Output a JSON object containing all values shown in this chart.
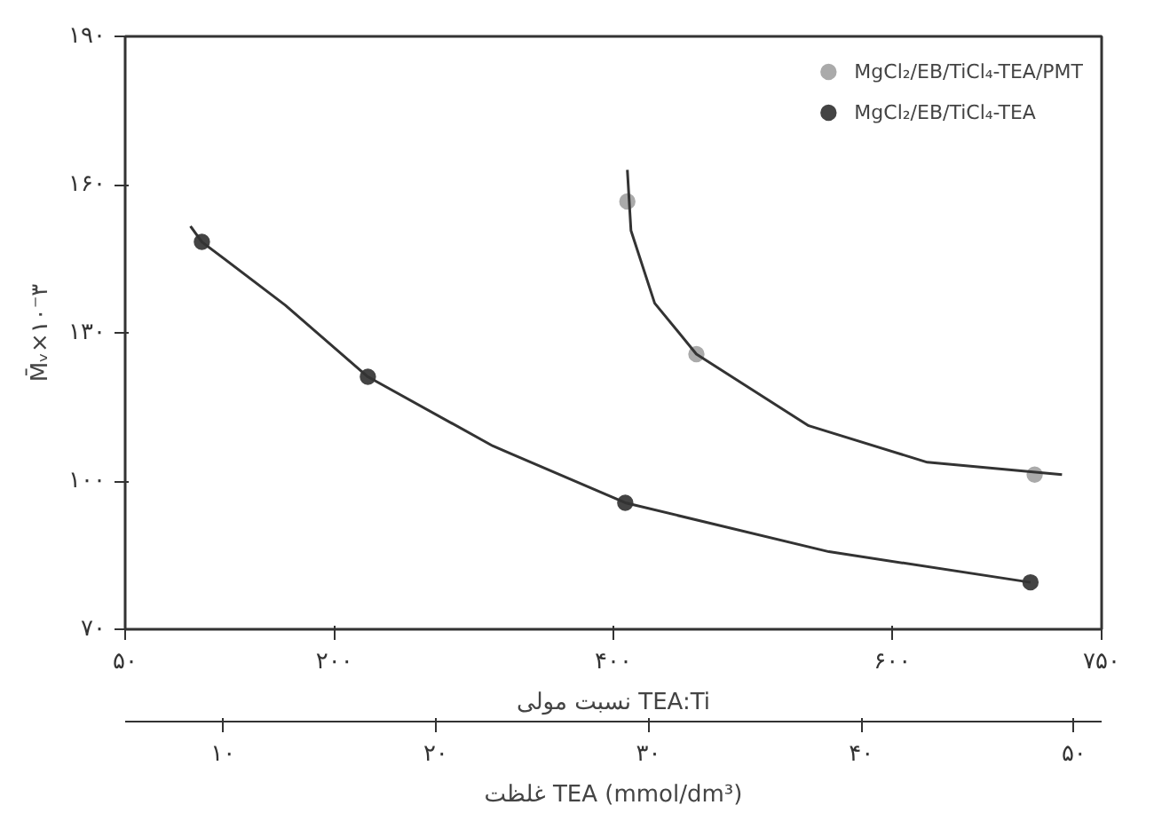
{
  "chart_data": {
    "type": "scatter",
    "xlabel": "نسبت مولی TEA:Ti",
    "ylabel": "M̄ᵥ×۱۰⁻۳",
    "x2label": "غلظت TEA (mmol/dm³)",
    "xlim": [
      50,
      750
    ],
    "xticks": [
      {
        "value": 50,
        "label": "۵۰"
      },
      {
        "value": 200,
        "label": "۲۰۰"
      },
      {
        "value": 400,
        "label": "۴۰۰"
      },
      {
        "value": 600,
        "label": "۶۰۰"
      },
      {
        "value": 750,
        "label": "۷۵۰"
      }
    ],
    "x2lim": [
      5.4,
      51.3
    ],
    "x2ticks": [
      {
        "value": 10,
        "label": "۱۰"
      },
      {
        "value": 20,
        "label": "۲۰"
      },
      {
        "value": 30,
        "label": "۳۰"
      },
      {
        "value": 40,
        "label": "۴۰"
      },
      {
        "value": 50,
        "label": "۵۰"
      }
    ],
    "ylim": [
      70,
      190
    ],
    "yticks": [
      {
        "value": 70,
        "label": "۷۰"
      },
      {
        "value": 100,
        "label": "۱۰۰"
      },
      {
        "value": 130,
        "label": "۱۳۰"
      },
      {
        "value": 160,
        "label": "۱۶۰"
      },
      {
        "value": 190,
        "label": "۱۹۰"
      }
    ],
    "grid": false,
    "legend": "top right",
    "marker": "circle",
    "series": [
      {
        "name": "MgCl₂/EB/TiCl₄-TEA/PMT",
        "color": "#aaaaaa",
        "x": [
          410,
          459.5,
          702
        ],
        "values": [
          156.6,
          125.7,
          101.3
        ]
      },
      {
        "name": "MgCl₂/EB/TiCl₄-TEA",
        "color": "#444444",
        "x": [
          105,
          224,
          408.5,
          699
        ],
        "values": [
          148.4,
          121.1,
          95.6,
          79.5
        ]
      },
      {
        "type": "line",
        "marker": "none",
        "color": "#333333",
        "x": [
          410,
          412.6,
          429.6,
          459.5,
          540,
          625,
          721.6
        ],
        "values": [
          163,
          150.7,
          136,
          125.7,
          111.2,
          103.8,
          101.3
        ]
      },
      {
        "type": "line",
        "marker": "none",
        "color": "#333333",
        "x": [
          96.8,
          105,
          164.8,
          224,
          313.6,
          408.5,
          554.5,
          699
        ],
        "values": [
          151.6,
          148.4,
          135.6,
          121.1,
          107.1,
          95.6,
          85.7,
          79.5
        ]
      }
    ]
  }
}
